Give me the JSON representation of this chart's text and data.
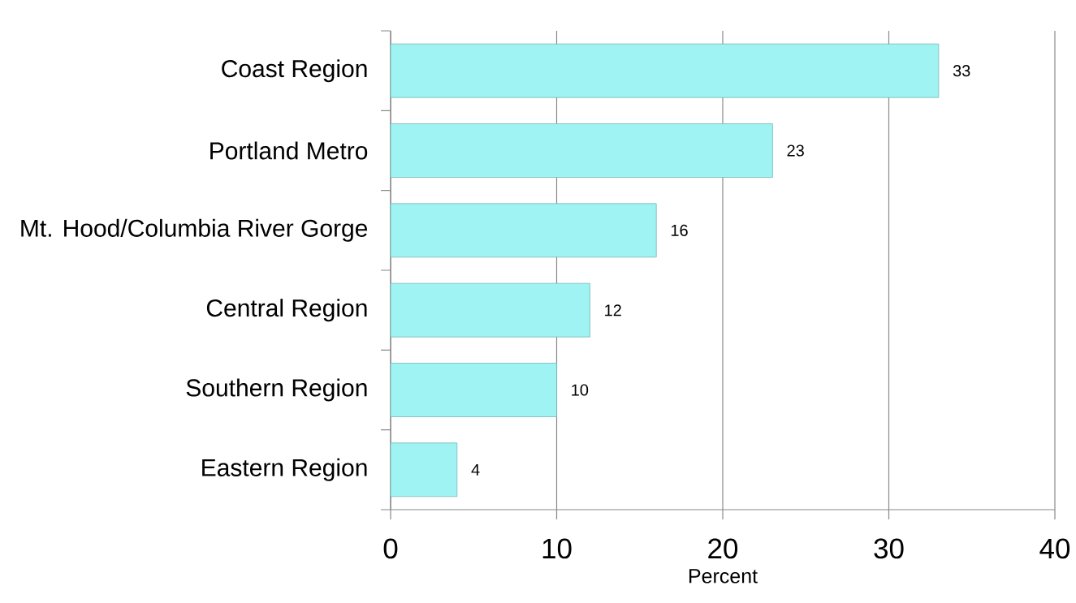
{
  "chart_data": {
    "type": "bar",
    "orientation": "horizontal",
    "categories": [
      "Coast Region",
      "Portland Metro",
      "Mt. Hood/Columbia River Gorge",
      "Central Region",
      "Southern Region",
      "Eastern Region"
    ],
    "values": [
      33,
      23,
      16,
      12,
      10,
      4
    ],
    "color": "#9ff3f3",
    "data_labels": true,
    "xlim": [
      0,
      40
    ],
    "xticks": [
      0,
      10,
      20,
      30,
      40
    ],
    "xlabel": "Percent",
    "grid": "x"
  }
}
